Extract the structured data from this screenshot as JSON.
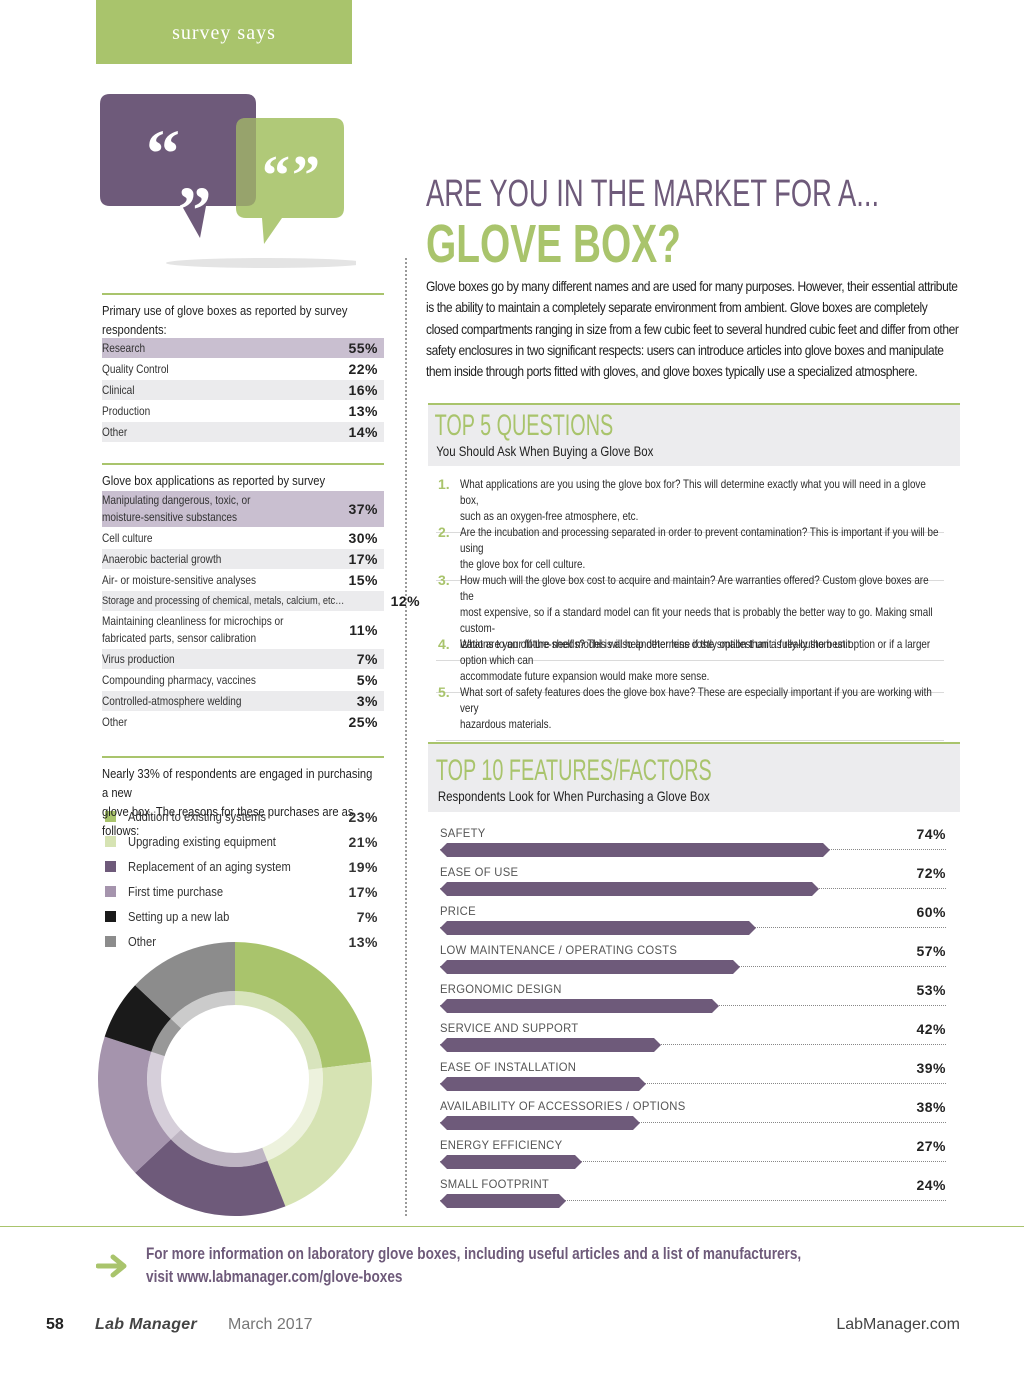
{
  "header": {
    "tab_label": "survey says"
  },
  "headline": {
    "line1": "ARE YOU IN THE MARKET FOR A...",
    "line2": "GLOVE BOX?"
  },
  "intro": "Glove boxes go by many different names and are used for many purposes. However, their essential attribute is the ability to maintain a completely separate environment from ambient. Glove boxes are completely closed compartments ranging in size from a few cubic feet to several hundred cubic feet and differ from other safety enclosures in two significant respects: users can introduce articles into glove boxes and manipulate them inside through ports fitted with gloves, and glove boxes typically use a specialized atmosphere.",
  "primary_use": {
    "title": "Primary use of glove boxes as reported by survey respondents:",
    "rows": [
      {
        "label": "Research",
        "value": "55%"
      },
      {
        "label": "Quality Control",
        "value": "22%"
      },
      {
        "label": "Clinical",
        "value": "16%"
      },
      {
        "label": "Production",
        "value": "13%"
      },
      {
        "label": "Other",
        "value": "14%"
      }
    ]
  },
  "applications": {
    "title": "Glove box applications as reported by survey respondents:",
    "rows": [
      {
        "label": "Manipulating dangerous, toxic, or",
        "label2": "moisture-sensitive substances",
        "value": "37%"
      },
      {
        "label": "Cell culture",
        "value": "30%"
      },
      {
        "label": "Anaerobic bacterial growth",
        "value": "17%"
      },
      {
        "label": "Air- or moisture-sensitive analyses",
        "value": "15%"
      },
      {
        "label": "Storage and processing of chemical, metals, calcium, etc…",
        "value": "12%"
      },
      {
        "label": "Maintaining cleanliness for microchips or",
        "label2": "fabricated parts, sensor calibration",
        "value": "11%"
      },
      {
        "label": "Virus production",
        "value": "7%"
      },
      {
        "label": "Compounding pharmacy, vaccines",
        "value": "5%"
      },
      {
        "label": "Controlled-atmosphere welding",
        "value": "3%"
      },
      {
        "label": "Other",
        "value": "25%"
      }
    ]
  },
  "purchasing": {
    "title_line1": "Nearly 33% of respondents are engaged in purchasing a new",
    "title_line2": "glove box. The reasons for these purchases are as follows:",
    "items": [
      {
        "label": "Addition to existing systems",
        "value": "23%",
        "color": "#a9c46c"
      },
      {
        "label": "Upgrading existing equipment",
        "value": "21%",
        "color": "#d6e3b3"
      },
      {
        "label": "Replacement of an aging system",
        "value": "19%",
        "color": "#6e5a7a"
      },
      {
        "label": "First time purchase",
        "value": "17%",
        "color": "#a594ad"
      },
      {
        "label": "Setting up a new lab",
        "value": "7%",
        "color": "#1a1a1a"
      },
      {
        "label": "Other",
        "value": "13%",
        "color": "#8c8c8c"
      }
    ]
  },
  "chart_data": {
    "type": "pie",
    "categories": [
      "Addition to existing systems",
      "Upgrading existing equipment",
      "Replacement of an aging system",
      "First time purchase",
      "Setting up a new lab",
      "Other"
    ],
    "values": [
      23,
      21,
      19,
      17,
      7,
      13
    ],
    "colors": [
      "#a9c46c",
      "#d6e3b3",
      "#6e5a7a",
      "#a594ad",
      "#1a1a1a",
      "#8c8c8c"
    ]
  },
  "top5": {
    "title": "TOP 5 QUESTIONS",
    "subtitle": "You Should Ask When Buying a Glove Box",
    "questions": [
      {
        "num": "1.",
        "line1": "What applications are you using the glove box for? This will determine exactly what you will need in a glove box,",
        "line2": "such as an oxygen-free atmosphere, etc."
      },
      {
        "num": "2.",
        "line1": "Are the incubation and processing separated in order to prevent contamination? This is important if you will be using",
        "line2": "the glove box for cell culture."
      },
      {
        "num": "3.",
        "line1": "How much will the glove box cost to acquire and maintain? Are warranties offered? Custom glove boxes are the",
        "line2": "most expensive, so if a standard model can fit your needs that is probably the better way to go. Making small custom-",
        "line3": "izations to an off-the-shelf model is also another less costly option than a fully-custom unit."
      },
      {
        "num": "4.",
        "line1": "What are your future needs? This will help determine if the smallest unit is really the best option or if a larger option which can",
        "line2": "accommodate future expansion would make more sense."
      },
      {
        "num": "5.",
        "line1": "What sort of safety features does the glove box have? These are especially important if you are working with very",
        "line2": "hazardous materials."
      }
    ]
  },
  "top10": {
    "title": "TOP 10 FEATURES/FACTORS",
    "subtitle": "Respondents Look for When Purchasing a Glove Box",
    "features": [
      {
        "label": "SAFETY",
        "value": "74%",
        "pct": 74
      },
      {
        "label": "EASE OF USE",
        "value": "72%",
        "pct": 72
      },
      {
        "label": "PRICE",
        "value": "60%",
        "pct": 60
      },
      {
        "label": "LOW MAINTENANCE / OPERATING COSTS",
        "value": "57%",
        "pct": 57
      },
      {
        "label": "ERGONOMIC DESIGN",
        "value": "53%",
        "pct": 53
      },
      {
        "label": "SERVICE AND SUPPORT",
        "value": "42%",
        "pct": 42
      },
      {
        "label": "EASE OF INSTALLATION",
        "value": "39%",
        "pct": 39
      },
      {
        "label": "AVAILABILITY OF ACCESSORIES / OPTIONS",
        "value": "38%",
        "pct": 38
      },
      {
        "label": "ENERGY EFFICIENCY",
        "value": "27%",
        "pct": 27
      },
      {
        "label": "SMALL FOOTPRINT",
        "value": "24%",
        "pct": 24
      }
    ]
  },
  "cta": {
    "line1": "For more information on laboratory glove boxes, including useful articles and a list of manufacturers,",
    "line2": "visit www.labmanager.com/glove-boxes"
  },
  "footer": {
    "page": "58",
    "magazine": "Lab Manager",
    "date": "March 2017",
    "site": "LabManager.com"
  },
  "colors": {
    "green": "#a9c46c",
    "purple": "#6e5a7a",
    "light_purple": "#c9bfd0",
    "panel_gray": "#ececee"
  }
}
